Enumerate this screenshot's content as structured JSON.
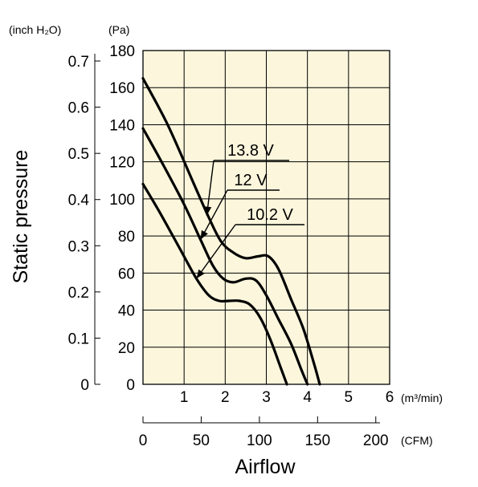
{
  "chart_data": {
    "type": "line",
    "ylabel": "Static pressure",
    "xlabel": "Airflow",
    "y_unit_pa": "(Pa)",
    "y_unit_inch": "(inch H₂O)",
    "x_unit_m3": "(m³/min)",
    "x_unit_cfm": "(CFM)",
    "xlim": [
      0,
      6
    ],
    "ylim": [
      0,
      180
    ],
    "grid": true,
    "plot_background": "#fbf6dc",
    "line_color": "#000000",
    "x_ticks_m3": [
      "1",
      "2",
      "3",
      "4",
      "5",
      "6"
    ],
    "y_ticks_pa": [
      "0",
      "20",
      "40",
      "60",
      "80",
      "100",
      "120",
      "140",
      "160",
      "180"
    ],
    "y_ticks_inch": [
      "0",
      "0.1",
      "0.2",
      "0.3",
      "0.4",
      "0.5",
      "0.6",
      "0.7"
    ],
    "x_ticks_cfm": [
      "0",
      "50",
      "100",
      "150",
      "200"
    ],
    "series": [
      {
        "name": "13.8 V",
        "x": [
          0,
          0.6,
          1.2,
          1.6,
          1.9,
          2.2,
          2.5,
          2.8,
          3.05,
          3.3,
          3.6,
          3.9,
          4.15,
          4.3
        ],
        "y": [
          165,
          140,
          110,
          90,
          77,
          71,
          68,
          69,
          69,
          62,
          46,
          30,
          12,
          0
        ]
      },
      {
        "name": "12 V",
        "x": [
          0,
          0.5,
          1.0,
          1.4,
          1.7,
          1.95,
          2.2,
          2.5,
          2.75,
          3.0,
          3.3,
          3.6,
          3.85,
          4.0
        ],
        "y": [
          138,
          118,
          97,
          78,
          64,
          57,
          55,
          57,
          56,
          48,
          35,
          22,
          8,
          0
        ]
      },
      {
        "name": "10.2 V",
        "x": [
          0,
          0.4,
          0.9,
          1.3,
          1.6,
          1.85,
          2.1,
          2.35,
          2.6,
          2.85,
          3.1,
          3.35,
          3.5
        ],
        "y": [
          108,
          93,
          73,
          57,
          48,
          45,
          45,
          45,
          43,
          36,
          24,
          9,
          0
        ]
      }
    ]
  }
}
